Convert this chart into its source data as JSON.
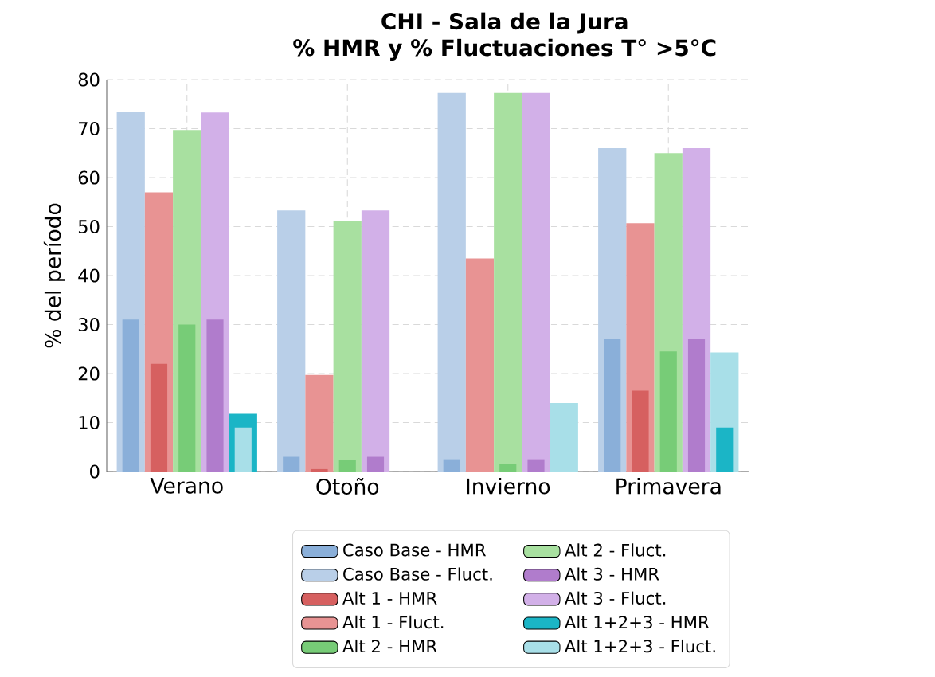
{
  "chart_data": {
    "type": "bar",
    "title": "CHI - Sala de la Jura",
    "subtitle": "% HMR y % Fluctuaciones T° >5°C",
    "ylabel": "% del período",
    "categories": [
      "Verano",
      "Otoño",
      "Invierno",
      "Primavera"
    ],
    "series": [
      {
        "name": "Caso Base - HMR",
        "color": "#8aafd9",
        "values": [
          31,
          3,
          2.5,
          27
        ]
      },
      {
        "name": "Caso Base - Fluct.",
        "color": "#b9cfe8",
        "values": [
          73.5,
          53.3,
          77.3,
          66
        ]
      },
      {
        "name": "Alt 1 - HMR",
        "color": "#d66060",
        "values": [
          22,
          0.5,
          0,
          16.5
        ]
      },
      {
        "name": "Alt 1 - Fluct.",
        "color": "#e89393",
        "values": [
          57,
          19.7,
          43.5,
          50.7
        ]
      },
      {
        "name": "Alt 2 - HMR",
        "color": "#77cc77",
        "values": [
          30,
          2.3,
          1.5,
          24.5
        ]
      },
      {
        "name": "Alt 2 - Fluct.",
        "color": "#a8e0a0",
        "values": [
          69.7,
          51.2,
          77.3,
          65
        ]
      },
      {
        "name": "Alt 3 - HMR",
        "color": "#b07ccc",
        "values": [
          31,
          3,
          2.5,
          27
        ]
      },
      {
        "name": "Alt 3 - Fluct.",
        "color": "#d2b0e8",
        "values": [
          73.3,
          53.3,
          77.3,
          66
        ]
      },
      {
        "name": "Alt 1+2+3 - HMR",
        "color": "#1bb5c6",
        "values": [
          11.8,
          0,
          0,
          9
        ]
      },
      {
        "name": "Alt 1+2+3 - Fluct.",
        "color": "#a8dfe8",
        "values": [
          9,
          0,
          14,
          24.3
        ]
      }
    ],
    "ylim": [
      0,
      80
    ],
    "yticks": [
      0,
      10,
      20,
      30,
      40,
      50,
      60,
      70,
      80
    ],
    "grid": true,
    "legend": "bottom"
  }
}
